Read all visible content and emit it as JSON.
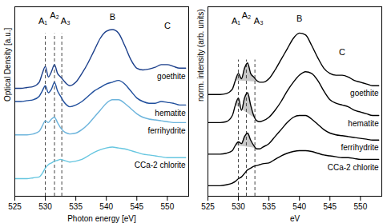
{
  "chart_data": [
    {
      "type": "line",
      "xlabel": "Photon energy [eV]",
      "ylabel": "Optical Density [a.u.]",
      "xlim": [
        525,
        553.5
      ],
      "xticks": [
        525,
        530,
        535,
        540,
        545,
        550
      ],
      "ylim": [
        0,
        10.8
      ],
      "tick_labels": "x",
      "grid": false,
      "x": [
        525,
        526,
        527,
        528,
        529,
        529.5,
        530,
        530.5,
        531,
        531.5,
        532,
        532.5,
        533,
        533.5,
        534,
        535,
        536,
        537,
        538,
        539,
        540,
        541,
        542,
        543,
        544,
        545,
        546,
        547,
        548,
        549,
        550,
        551,
        552,
        553
      ],
      "series": [
        {
          "name": "goethite",
          "color": "#1b3f8b",
          "values": [
            6.15,
            6.15,
            6.2,
            6.25,
            6.5,
            7.0,
            7.4,
            6.8,
            7.1,
            7.5,
            7.0,
            6.8,
            6.6,
            6.4,
            6.3,
            6.5,
            7.0,
            7.6,
            8.3,
            9.0,
            9.4,
            9.5,
            9.3,
            8.6,
            7.8,
            7.3,
            7.2,
            7.25,
            7.35,
            7.5,
            7.5,
            7.4,
            7.3,
            7.3
          ]
        },
        {
          "name": "hematite",
          "color": "#1f4e9c",
          "values": [
            5.4,
            5.4,
            5.45,
            5.5,
            5.7,
            6.0,
            6.3,
            5.9,
            6.1,
            6.5,
            6.0,
            5.7,
            5.4,
            5.2,
            5.1,
            5.2,
            5.4,
            5.7,
            6.0,
            6.2,
            6.4,
            6.5,
            6.6,
            6.4,
            6.0,
            5.6,
            5.4,
            5.3,
            5.3,
            5.4,
            5.35,
            5.3,
            5.2,
            5.2
          ]
        },
        {
          "name": "ferrihydrite",
          "color": "#6cb4dc",
          "values": [
            3.5,
            3.5,
            3.5,
            3.55,
            3.7,
            4.0,
            4.3,
            4.2,
            4.4,
            4.5,
            4.2,
            3.9,
            3.7,
            3.6,
            3.55,
            3.6,
            3.8,
            4.1,
            4.5,
            4.9,
            5.3,
            5.5,
            5.5,
            5.3,
            5.0,
            4.7,
            4.5,
            4.4,
            4.35,
            4.3,
            4.25,
            4.2,
            4.2,
            4.2
          ]
        },
        {
          "name": "CCa-2 chlorite",
          "color": "#66c6e0",
          "values": [
            1.0,
            1.0,
            1.0,
            1.05,
            1.1,
            1.3,
            1.6,
            1.8,
            1.9,
            2.0,
            2.05,
            2.1,
            2.05,
            2.0,
            1.95,
            2.0,
            2.1,
            2.3,
            2.5,
            2.65,
            2.75,
            2.8,
            2.75,
            2.7,
            2.6,
            2.5,
            2.4,
            2.35,
            2.3,
            2.25,
            2.2,
            2.2,
            2.2,
            2.2
          ]
        }
      ],
      "vlines": [
        530.0,
        531.5,
        532.7
      ],
      "annotations": [
        {
          "text": "A₁",
          "x": 529.6,
          "y": 10.0
        },
        {
          "text": "A₂",
          "x": 531.5,
          "y": 10.3
        },
        {
          "text": "A₃",
          "x": 533.3,
          "y": 10.0
        },
        {
          "text": "B",
          "x": 541,
          "y": 10.2
        },
        {
          "text": "C",
          "x": 550,
          "y": 9.7
        }
      ]
    },
    {
      "type": "line",
      "xlabel": "eV",
      "ylabel": "norm. intensity (arb. units)",
      "xlim": [
        525,
        553.5
      ],
      "xticks": [
        525,
        530,
        535,
        540,
        545,
        550
      ],
      "ylim": [
        0,
        10.8
      ],
      "tick_labels": "x",
      "grid": false,
      "x": [
        525,
        526,
        527,
        528,
        529,
        529.5,
        530,
        530.5,
        531,
        531.5,
        532,
        532.5,
        533,
        533.5,
        534,
        535,
        536,
        537,
        538,
        539,
        540,
        541,
        542,
        543,
        544,
        545,
        546,
        547,
        548,
        549,
        550,
        551,
        552,
        553
      ],
      "series": [
        {
          "name": "goethite",
          "color": "#000000",
          "values": [
            5.8,
            5.8,
            5.8,
            5.85,
            6.1,
            6.6,
            7.0,
            6.7,
            7.3,
            7.6,
            7.0,
            6.8,
            6.6,
            6.5,
            6.5,
            6.7,
            7.2,
            7.8,
            8.4,
            9.0,
            9.3,
            9.2,
            8.6,
            7.9,
            7.3,
            7.0,
            6.9,
            6.9,
            6.8,
            6.6,
            6.5,
            6.4,
            6.3,
            6.3
          ]
        },
        {
          "name": "hematite",
          "color": "#000000",
          "values": [
            4.2,
            4.2,
            4.2,
            4.25,
            4.6,
            5.2,
            5.6,
            4.9,
            5.6,
            5.9,
            5.2,
            4.6,
            4.3,
            4.25,
            4.3,
            4.5,
            4.9,
            5.4,
            6.0,
            6.5,
            6.9,
            7.1,
            7.0,
            6.6,
            6.0,
            5.5,
            5.3,
            5.2,
            5.1,
            4.9,
            4.8,
            4.7,
            4.6,
            4.6
          ]
        },
        {
          "name": "ferrihydrite",
          "color": "#000000",
          "values": [
            2.4,
            2.4,
            2.4,
            2.45,
            2.6,
            2.9,
            3.1,
            3.0,
            3.4,
            3.6,
            3.2,
            2.9,
            2.7,
            2.7,
            2.8,
            3.0,
            3.4,
            3.8,
            4.2,
            4.5,
            4.6,
            4.6,
            4.4,
            4.1,
            3.8,
            3.6,
            3.5,
            3.45,
            3.4,
            3.35,
            3.3,
            3.25,
            3.2,
            3.2
          ]
        },
        {
          "name": "CCa-2 chlorite",
          "color": "#000000",
          "values": [
            0.6,
            0.6,
            0.6,
            0.65,
            0.75,
            0.85,
            1.0,
            1.1,
            1.3,
            1.5,
            1.6,
            1.7,
            1.75,
            1.8,
            1.85,
            1.9,
            2.1,
            2.3,
            2.45,
            2.55,
            2.6,
            2.6,
            2.55,
            2.45,
            2.35,
            2.3,
            2.25,
            2.2,
            2.2,
            2.15,
            2.1,
            2.1,
            2.1,
            2.1
          ]
        }
      ],
      "vlines": [
        530.0,
        531.3,
        532.7
      ],
      "shade": {
        "x": [
          529.5,
          533.5
        ],
        "series": [
          "goethite",
          "hematite",
          "ferrihydrite"
        ],
        "color": "#c8c8c8"
      },
      "annotations": [
        {
          "text": "A₁",
          "x": 529.6,
          "y": 10.0
        },
        {
          "text": "A₂",
          "x": 531.3,
          "y": 10.3
        },
        {
          "text": "A₃",
          "x": 533.3,
          "y": 10.0
        },
        {
          "text": "B",
          "x": 540,
          "y": 10.1
        },
        {
          "text": "C",
          "x": 547,
          "y": 8.2
        }
      ]
    }
  ]
}
